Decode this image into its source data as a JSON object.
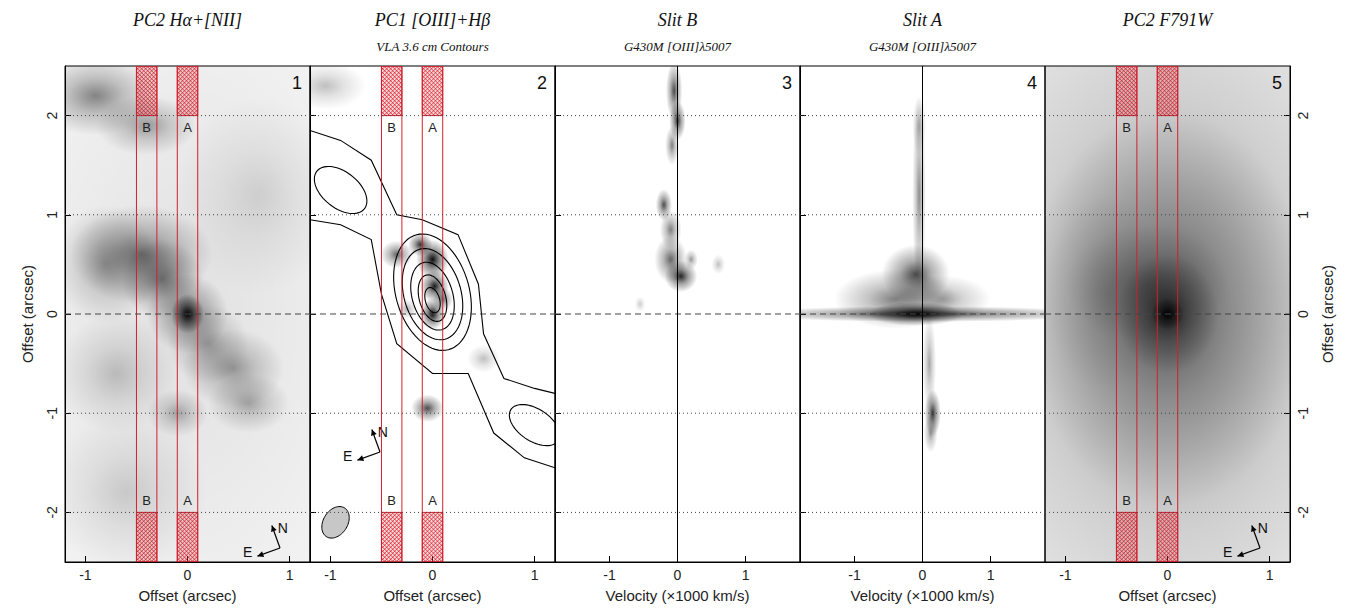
{
  "chart_data": [
    {
      "type": "image",
      "title": "PC2 Hα+[NII]",
      "panel": "1",
      "xlabel": "Offset (arcsec)",
      "ylabel": "Offset (arcsec)",
      "xlim": [
        -1.2,
        1.2
      ],
      "xticks": [
        -1,
        0,
        1
      ],
      "ylim": [
        -2.5,
        2.5
      ],
      "yticks": [
        -2,
        -1,
        0,
        1,
        2
      ],
      "emission": [
        [
          0,
          0,
          2.0,
          3.5,
          0.12
        ],
        [
          0,
          0,
          0.08,
          0.1,
          0.95
        ],
        [
          0,
          0,
          0.2,
          0.2,
          0.5
        ],
        [
          -0.45,
          0.6,
          0.35,
          0.25,
          0.5
        ],
        [
          -0.25,
          0.35,
          0.2,
          0.2,
          0.45
        ],
        [
          -0.8,
          0.5,
          0.25,
          0.3,
          0.3
        ],
        [
          -0.9,
          2.2,
          0.3,
          0.2,
          0.45
        ],
        [
          -0.4,
          1.9,
          0.25,
          0.15,
          0.35
        ],
        [
          0.2,
          -0.3,
          0.2,
          0.2,
          0.3
        ],
        [
          0.45,
          -0.55,
          0.25,
          0.2,
          0.35
        ],
        [
          0.6,
          -0.9,
          0.2,
          0.15,
          0.3
        ],
        [
          -0.1,
          -1.0,
          0.15,
          0.12,
          0.3
        ],
        [
          -0.7,
          -0.6,
          0.3,
          0.3,
          0.2
        ],
        [
          0.7,
          1.2,
          0.4,
          0.5,
          0.12
        ],
        [
          -0.6,
          -1.8,
          0.4,
          0.4,
          0.15
        ]
      ],
      "slits": [
        {
          "label": "B",
          "x": [
            -0.5,
            -0.3
          ],
          "y": [
            -2,
            2
          ]
        },
        {
          "label": "A",
          "x": [
            -0.1,
            0.1
          ],
          "y": [
            -2,
            2
          ]
        }
      ],
      "hlines": [
        {
          "y": 2,
          "line_style": "dotted"
        },
        {
          "y": 1,
          "line_style": "dotted"
        },
        {
          "y": 0,
          "line_style": "dashed"
        },
        {
          "y": -1,
          "line_style": "dotted"
        },
        {
          "y": -2,
          "line_style": "dotted"
        }
      ],
      "compass": [
        "N",
        "E"
      ]
    },
    {
      "type": "image",
      "title": "PC1 [OIII]+Hβ",
      "subtitle": "VLA 3.6 cm Contours",
      "panel": "2",
      "xlabel": "Offset (arcsec)",
      "tick_labels": "x",
      "xlim": [
        -1.2,
        1.2
      ],
      "xticks": [
        -1,
        0,
        1
      ],
      "ylim": [
        -2.5,
        2.5
      ],
      "yticks": [
        -2,
        -1,
        0,
        1,
        2
      ],
      "emission": [
        [
          0,
          0,
          0.06,
          0.08,
          0.95
        ],
        [
          0.02,
          0.28,
          0.07,
          0.08,
          0.9
        ],
        [
          0,
          0.55,
          0.08,
          0.1,
          0.95
        ],
        [
          -0.12,
          0.7,
          0.06,
          0.06,
          0.8
        ],
        [
          -0.35,
          0.6,
          0.08,
          0.07,
          0.6
        ],
        [
          0.1,
          0.15,
          0.05,
          0.06,
          0.6
        ],
        [
          -0.05,
          -0.95,
          0.08,
          0.07,
          0.7
        ],
        [
          -1.05,
          2.3,
          0.2,
          0.12,
          0.25
        ],
        [
          0.5,
          -0.45,
          0.08,
          0.07,
          0.25
        ],
        [
          -0.25,
          0.05,
          0.05,
          0.05,
          0.3
        ]
      ],
      "contours": [
        {
          "points": [
            [
              -1.2,
              1.85
            ],
            [
              -0.9,
              1.75
            ],
            [
              -0.6,
              1.55
            ],
            [
              -0.35,
              1.0
            ],
            [
              -0.1,
              0.95
            ],
            [
              0.25,
              0.8
            ],
            [
              0.45,
              0.3
            ],
            [
              0.5,
              -0.2
            ],
            [
              0.7,
              -0.65
            ],
            [
              1.0,
              -0.75
            ],
            [
              1.2,
              -0.8
            ]
          ]
        },
        {
          "points": [
            [
              1.2,
              -1.55
            ],
            [
              0.9,
              -1.45
            ],
            [
              0.6,
              -1.2
            ],
            [
              0.35,
              -0.6
            ],
            [
              0.0,
              -0.6
            ],
            [
              -0.35,
              -0.3
            ],
            [
              -0.5,
              0.2
            ],
            [
              -0.6,
              0.75
            ],
            [
              -0.9,
              0.9
            ],
            [
              -1.2,
              0.95
            ]
          ]
        },
        {
          "ellipse": [
            0,
            0.22,
            0.36,
            0.6,
            15
          ]
        },
        {
          "ellipse": [
            0,
            0.2,
            0.28,
            0.47,
            15
          ]
        },
        {
          "ellipse": [
            0,
            0.18,
            0.2,
            0.35,
            15
          ]
        },
        {
          "ellipse": [
            0,
            0.16,
            0.13,
            0.24,
            15
          ]
        },
        {
          "ellipse": [
            0,
            0.14,
            0.07,
            0.13,
            15
          ]
        },
        {
          "ellipse": [
            -0.9,
            1.25,
            0.3,
            0.18,
            -40
          ]
        },
        {
          "ellipse": [
            1.0,
            -1.12,
            0.28,
            0.16,
            -35
          ]
        }
      ],
      "beam": [
        -0.95,
        -2.1,
        0.12,
        0.17,
        -30
      ],
      "slits": [
        {
          "label": "B",
          "x": [
            -0.5,
            -0.3
          ],
          "y": [
            -2,
            2
          ]
        },
        {
          "label": "A",
          "x": [
            -0.1,
            0.1
          ],
          "y": [
            -2,
            2
          ]
        }
      ],
      "hlines": [
        {
          "y": 2,
          "line_style": "dotted"
        },
        {
          "y": 1,
          "line_style": "dotted"
        },
        {
          "y": 0,
          "line_style": "dashed"
        },
        {
          "y": -1,
          "line_style": "dotted"
        },
        {
          "y": -2,
          "line_style": "dotted"
        }
      ],
      "compass": [
        "N",
        "E"
      ]
    },
    {
      "type": "spectrum",
      "title": "Slit B",
      "subtitle": "G430M [OIII]λ5007",
      "panel": "3",
      "xlabel": "Velocity (×1000 km/s)",
      "tick_labels": "x",
      "xlim": [
        -1.8,
        1.8
      ],
      "xticks": [
        -1,
        0,
        1
      ],
      "ylim": [
        -2.5,
        2.5
      ],
      "yticks": [
        -2,
        -1,
        0,
        1,
        2
      ],
      "emission": [
        [
          -0.05,
          2.25,
          0.06,
          0.15,
          0.7
        ],
        [
          0.0,
          1.95,
          0.06,
          0.1,
          0.8
        ],
        [
          -0.08,
          1.7,
          0.05,
          0.1,
          0.5
        ],
        [
          -0.2,
          1.1,
          0.06,
          0.08,
          0.7
        ],
        [
          -0.1,
          0.85,
          0.08,
          0.1,
          0.5
        ],
        [
          -0.1,
          0.55,
          0.12,
          0.12,
          0.6
        ],
        [
          0.05,
          0.38,
          0.12,
          0.08,
          0.85
        ],
        [
          0.2,
          0.55,
          0.05,
          0.05,
          0.4
        ],
        [
          0.6,
          0.5,
          0.05,
          0.05,
          0.25
        ],
        [
          -0.55,
          0.1,
          0.04,
          0.04,
          0.2
        ]
      ],
      "hlines": [
        {
          "y": 2,
          "line_style": "dotted"
        },
        {
          "y": 1,
          "line_style": "dotted"
        },
        {
          "y": 0,
          "line_style": "dashed"
        },
        {
          "y": -1,
          "line_style": "dotted"
        },
        {
          "y": -2,
          "line_style": "dotted"
        }
      ],
      "vlines": [
        {
          "x": 0,
          "line_style": "solid"
        }
      ]
    },
    {
      "type": "spectrum",
      "title": "Slit A",
      "subtitle": "G430M [OIII]λ5007",
      "panel": "4",
      "xlabel": "Velocity (×1000 km/s)",
      "tick_labels": "x",
      "xlim": [
        -1.8,
        1.8
      ],
      "xticks": [
        -1,
        0,
        1
      ],
      "ylim": [
        -2.5,
        2.5
      ],
      "yticks": [
        -2,
        -1,
        0,
        1,
        2
      ],
      "emission": [
        [
          0,
          0,
          1.3,
          0.04,
          0.75
        ],
        [
          -0.1,
          0,
          0.35,
          0.06,
          0.9
        ],
        [
          -0.1,
          0.4,
          0.25,
          0.15,
          0.7
        ],
        [
          -0.4,
          0.15,
          0.45,
          0.15,
          0.5
        ],
        [
          0.3,
          0.15,
          0.35,
          0.12,
          0.35
        ],
        [
          -0.05,
          1.2,
          0.05,
          0.5,
          0.45
        ],
        [
          -0.05,
          1.9,
          0.05,
          0.15,
          0.3
        ],
        [
          0.1,
          -0.5,
          0.05,
          0.25,
          0.35
        ],
        [
          0.15,
          -1.0,
          0.06,
          0.12,
          0.8
        ],
        [
          0.12,
          -1.2,
          0.05,
          0.1,
          0.4
        ]
      ],
      "hlines": [
        {
          "y": 2,
          "line_style": "dotted"
        },
        {
          "y": 1,
          "line_style": "dotted"
        },
        {
          "y": 0,
          "line_style": "dashed"
        },
        {
          "y": -1,
          "line_style": "dotted"
        },
        {
          "y": -2,
          "line_style": "dotted"
        }
      ],
      "vlines": [
        {
          "x": 0,
          "line_style": "solid"
        }
      ]
    },
    {
      "type": "image",
      "title": "PC2 F791W",
      "panel": "5",
      "xlabel": "Offset (arcsec)",
      "ylabel": "Offset (arcsec)",
      "xlim": [
        -1.2,
        1.2
      ],
      "xticks": [
        -1,
        0,
        1
      ],
      "ylim": [
        -2.5,
        2.5
      ],
      "yticks": [
        -2,
        -1,
        0,
        1,
        2
      ],
      "emission": [
        [
          0,
          0,
          1.6,
          2.5,
          0.4
        ],
        [
          0,
          0.05,
          0.7,
          1.0,
          0.45
        ],
        [
          0,
          0,
          0.25,
          0.3,
          0.6
        ],
        [
          0,
          0,
          0.08,
          0.08,
          0.95
        ],
        [
          -0.2,
          0.3,
          0.4,
          0.3,
          0.2
        ],
        [
          -0.6,
          0.2,
          0.3,
          0.5,
          0.15
        ]
      ],
      "slits": [
        {
          "label": "B",
          "x": [
            -0.5,
            -0.3
          ],
          "y": [
            -2,
            2
          ]
        },
        {
          "label": "A",
          "x": [
            -0.1,
            0.1
          ],
          "y": [
            -2,
            2
          ]
        }
      ],
      "hlines": [
        {
          "y": 2,
          "line_style": "dotted"
        },
        {
          "y": 1,
          "line_style": "dotted"
        },
        {
          "y": 0,
          "line_style": "dashed"
        },
        {
          "y": -1,
          "line_style": "dotted"
        },
        {
          "y": -2,
          "line_style": "dotted"
        }
      ],
      "compass": [
        "N",
        "E"
      ]
    }
  ]
}
